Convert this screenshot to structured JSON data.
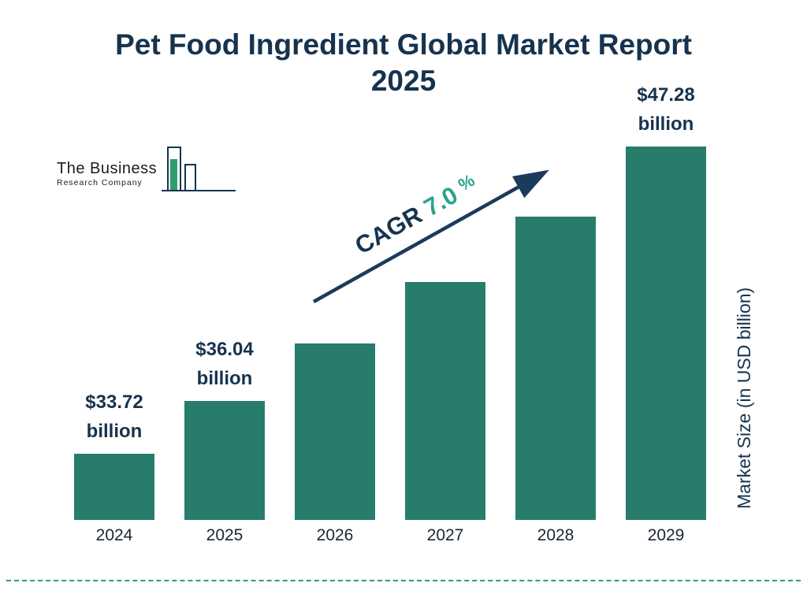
{
  "title": {
    "line1": "Pet Food Ingredient Global Market Report",
    "line2": "2025"
  },
  "logo": {
    "line1": "The Business",
    "line2": "Research Company"
  },
  "cagr": {
    "prefix": "CAGR ",
    "value": "7.0",
    "percent": "%"
  },
  "y_axis_label": "Market Size (in USD billion)",
  "colors": {
    "bar": "#287c6c",
    "navy": "#16334e",
    "teal_accent": "#2aa38c",
    "dashed_line": "#2e9a85"
  },
  "chart_data": {
    "type": "bar",
    "title": "Pet Food Ingredient Global Market Report 2025",
    "categories": [
      "2024",
      "2025",
      "2026",
      "2027",
      "2028",
      "2029"
    ],
    "values": [
      33.72,
      36.04,
      38.6,
      41.3,
      44.2,
      47.28
    ],
    "value_labels": [
      "$33.72 billion",
      "$36.04 billion",
      null,
      null,
      null,
      "$47.28 billion"
    ],
    "xlabel": "",
    "ylabel": "Market Size (in USD billion)",
    "ylim": [
      30.8,
      48.2
    ],
    "y_axis_not_zero_based": true,
    "grid": false,
    "legend": false,
    "annotation": "CAGR 7.0%"
  }
}
